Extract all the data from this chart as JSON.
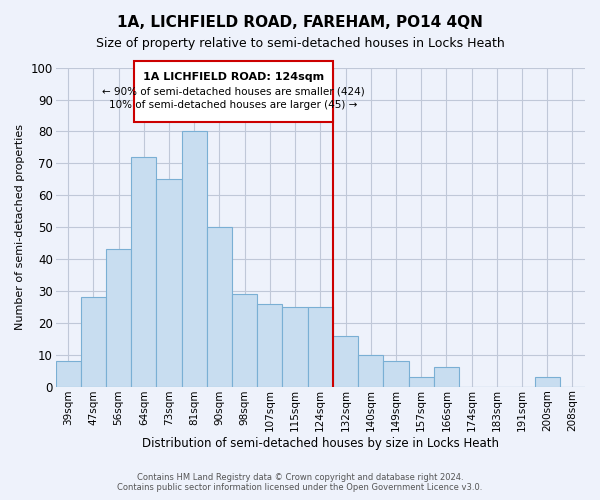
{
  "title": "1A, LICHFIELD ROAD, FAREHAM, PO14 4QN",
  "subtitle": "Size of property relative to semi-detached houses in Locks Heath",
  "xlabel": "Distribution of semi-detached houses by size in Locks Heath",
  "ylabel": "Number of semi-detached properties",
  "bar_labels": [
    "39sqm",
    "47sqm",
    "56sqm",
    "64sqm",
    "73sqm",
    "81sqm",
    "90sqm",
    "98sqm",
    "107sqm",
    "115sqm",
    "124sqm",
    "132sqm",
    "140sqm",
    "149sqm",
    "157sqm",
    "166sqm",
    "174sqm",
    "183sqm",
    "191sqm",
    "200sqm",
    "208sqm"
  ],
  "bar_values": [
    8,
    28,
    43,
    72,
    65,
    80,
    50,
    29,
    26,
    25,
    25,
    16,
    10,
    8,
    3,
    6,
    0,
    0,
    0,
    3,
    0
  ],
  "bar_color": "#c8ddf0",
  "bar_edge_color": "#7aafd4",
  "highlight_line_index": 10,
  "highlight_label": "1A LICHFIELD ROAD: 124sqm",
  "highlight_smaller": "← 90% of semi-detached houses are smaller (424)",
  "highlight_larger": "10% of semi-detached houses are larger (45) →",
  "line_color": "#cc0000",
  "ylim": [
    0,
    100
  ],
  "yticks": [
    0,
    10,
    20,
    30,
    40,
    50,
    60,
    70,
    80,
    90,
    100
  ],
  "footnote1": "Contains HM Land Registry data © Crown copyright and database right 2024.",
  "footnote2": "Contains public sector information licensed under the Open Government Licence v3.0.",
  "bg_color": "#eef2fb"
}
